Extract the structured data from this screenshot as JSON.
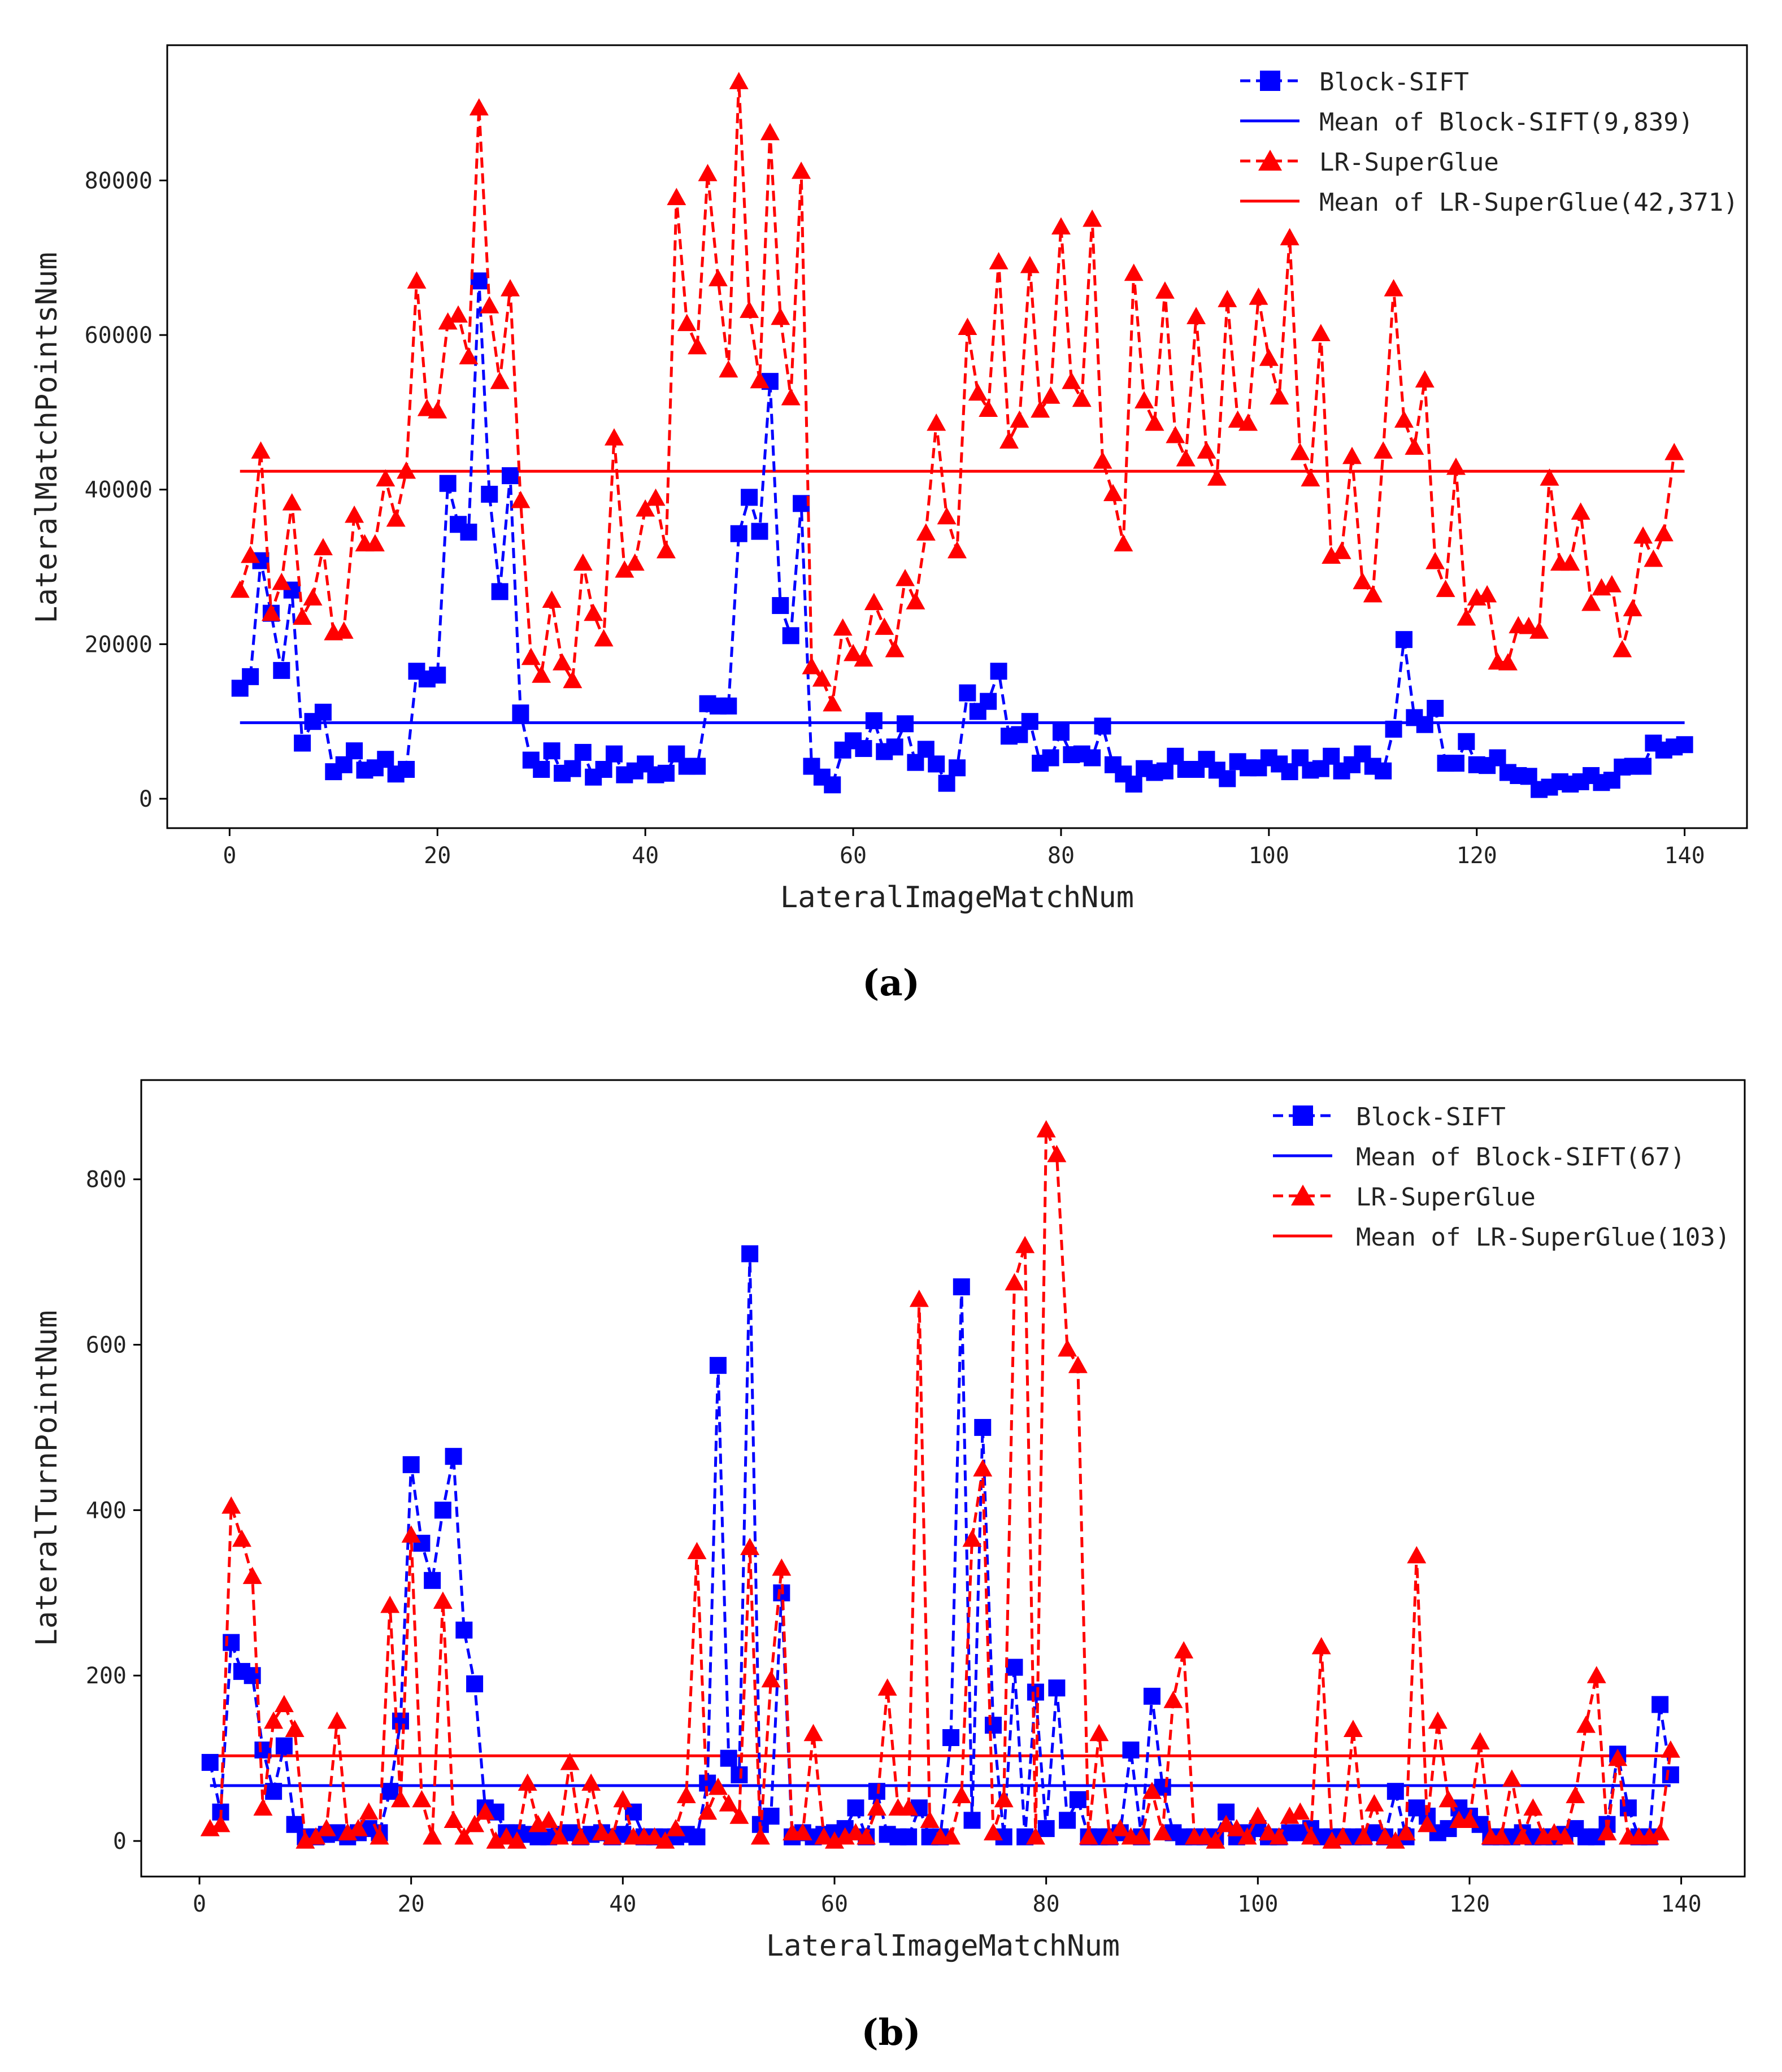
{
  "figure": {
    "caption_a": "(a)",
    "caption_b": "(b)"
  },
  "colors": {
    "block": "#0000ff",
    "lr": "#ff0000",
    "axis": "#000000",
    "text": "#222222"
  },
  "chart_data": [
    {
      "type": "line",
      "panel": "a",
      "title": "",
      "xlabel": "LateralImageMatchNum",
      "ylabel": "LateralMatchPointsNum",
      "xlim": [
        -6.0,
        146.0
      ],
      "ylim": [
        -3800,
        97500
      ],
      "xticks": [
        0,
        20,
        40,
        60,
        80,
        100,
        120,
        140
      ],
      "yticks": [
        0,
        20000,
        40000,
        60000,
        80000
      ],
      "grid": false,
      "legend_position": "top-right",
      "series": [
        {
          "name": "Block-SIFT",
          "style": "dashed",
          "marker": "square",
          "color": "#0000ff",
          "x_start": 1,
          "values": [
            14300,
            15800,
            30800,
            24000,
            16600,
            27000,
            7200,
            10000,
            11200,
            3500,
            4400,
            6200,
            3700,
            4000,
            5100,
            3200,
            3800,
            16500,
            15500,
            16000,
            40800,
            35500,
            34500,
            67000,
            39400,
            26800,
            41800,
            11100,
            5000,
            3800,
            6200,
            3300,
            3900,
            6000,
            2800,
            3800,
            5800,
            3100,
            3600,
            4500,
            3100,
            3300,
            5800,
            4200,
            4200,
            12300,
            12000,
            12000,
            34300,
            39000,
            34600,
            54000,
            25000,
            21100,
            38200,
            4200,
            2800,
            1800,
            6300,
            7500,
            6500,
            10100,
            6100,
            6700,
            9700,
            4700,
            6400,
            4500,
            2000,
            4000,
            13700,
            11300,
            12600,
            16500,
            8100,
            8300,
            10000,
            4600,
            5300,
            8600,
            5700,
            5800,
            5300,
            9400,
            4400,
            3200,
            1900,
            3900,
            3400,
            3600,
            5500,
            3800,
            3800,
            5100,
            3700,
            2600,
            4800,
            4000,
            4000,
            5300,
            4500,
            3500,
            5300,
            3700,
            3900,
            5500,
            3600,
            4400,
            5800,
            4200,
            3600,
            9000,
            20600,
            10500,
            9600,
            11700,
            4600,
            4600,
            7400,
            4400,
            4300,
            5300,
            3400,
            3000,
            2900,
            1200,
            1500,
            2200,
            1900,
            2200,
            3000,
            2100,
            2400,
            4100,
            4200,
            4200,
            7200,
            6300,
            6700,
            7000
          ]
        },
        {
          "name": "LR-SuperGlue",
          "style": "dashed",
          "marker": "triangle",
          "color": "#ff0000",
          "x_start": 1,
          "values": [
            27000,
            31500,
            45000,
            24000,
            28000,
            38300,
            23500,
            26000,
            32500,
            21500,
            21700,
            36700,
            33000,
            33000,
            41400,
            36200,
            42400,
            67000,
            50500,
            50200,
            61700,
            62600,
            57200,
            89400,
            63800,
            54000,
            66000,
            38600,
            18300,
            16000,
            25700,
            17600,
            15300,
            30500,
            24000,
            20700,
            46700,
            29600,
            30500,
            37500,
            38900,
            32100,
            77800,
            61500,
            58500,
            80900,
            67300,
            55500,
            92800,
            63200,
            54100,
            86200,
            62300,
            51900,
            81200,
            17100,
            15500,
            12300,
            22100,
            18800,
            18100,
            25400,
            22200,
            19300,
            28500,
            25500,
            34400,
            48600,
            36500,
            32100,
            61000,
            52500,
            50400,
            69500,
            46300,
            49000,
            69000,
            50300,
            52100,
            74000,
            54000,
            51700,
            75000,
            43700,
            39500,
            33000,
            68000,
            51500,
            48600,
            65700,
            47000,
            44000,
            62400,
            45000,
            41500,
            64600,
            49000,
            48600,
            64900,
            57000,
            52000,
            72600,
            44800,
            41400,
            60200,
            31400,
            32000,
            44300,
            28100,
            26400,
            45000,
            66000,
            49000,
            45500,
            54200,
            30700,
            27100,
            42900,
            23400,
            26000,
            26400,
            17700,
            17600,
            22400,
            22300,
            21700,
            41500,
            30500,
            30500,
            37100,
            25300,
            27300,
            27700,
            19300,
            24600,
            34000,
            31000,
            34300,
            44800
          ]
        }
      ],
      "reference_lines": [
        {
          "name": "Mean of Block-SIFT(9,839)",
          "value": 9839,
          "color": "#0000ff"
        },
        {
          "name": "Mean of LR-SuperGlue(42,371)",
          "value": 42371,
          "color": "#ff0000"
        }
      ]
    },
    {
      "type": "line",
      "panel": "b",
      "title": "",
      "xlabel": "LateralImageMatchNum",
      "ylabel": "LateralTurnPointNum",
      "xlim": [
        -5.5,
        146.0
      ],
      "ylim": [
        -43,
        920
      ],
      "xticks": [
        0,
        20,
        40,
        60,
        80,
        100,
        120,
        140
      ],
      "yticks": [
        0,
        200,
        400,
        600,
        800
      ],
      "grid": false,
      "legend_position": "top-right",
      "series": [
        {
          "name": "Block-SIFT",
          "style": "dashed",
          "marker": "square",
          "color": "#0000ff",
          "x_start": 1,
          "values": [
            95,
            35,
            240,
            205,
            200,
            110,
            60,
            115,
            20,
            5,
            5,
            8,
            10,
            5,
            10,
            15,
            10,
            60,
            145,
            455,
            360,
            315,
            400,
            465,
            255,
            190,
            40,
            35,
            10,
            10,
            8,
            5,
            5,
            8,
            10,
            5,
            8,
            10,
            5,
            8,
            35,
            5,
            5,
            5,
            5,
            8,
            5,
            70,
            575,
            100,
            80,
            710,
            20,
            30,
            300,
            5,
            10,
            5,
            8,
            10,
            15,
            40,
            5,
            60,
            8,
            5,
            5,
            40,
            5,
            5,
            125,
            670,
            25,
            500,
            140,
            5,
            210,
            5,
            180,
            15,
            185,
            25,
            50,
            5,
            5,
            5,
            10,
            110,
            5,
            175,
            65,
            10,
            5,
            5,
            5,
            5,
            35,
            5,
            10,
            15,
            5,
            5,
            10,
            10,
            15,
            5,
            5,
            5,
            5,
            5,
            10,
            5,
            60,
            5,
            40,
            30,
            10,
            15,
            40,
            30,
            20,
            5,
            5,
            5,
            10,
            5,
            5,
            5,
            8,
            15,
            5,
            5,
            20,
            105,
            40,
            5,
            5,
            165,
            80
          ]
        },
        {
          "name": "LR-SuperGlue",
          "style": "dashed",
          "marker": "triangle",
          "color": "#ff0000",
          "x_start": 1,
          "values": [
            15,
            20,
            405,
            365,
            320,
            40,
            145,
            165,
            135,
            0,
            5,
            15,
            145,
            10,
            15,
            35,
            5,
            285,
            50,
            370,
            50,
            5,
            290,
            25,
            5,
            20,
            35,
            0,
            5,
            0,
            70,
            20,
            25,
            5,
            95,
            5,
            70,
            10,
            5,
            50,
            5,
            5,
            5,
            0,
            15,
            55,
            350,
            35,
            65,
            45,
            30,
            355,
            5,
            195,
            330,
            10,
            10,
            130,
            5,
            0,
            5,
            10,
            5,
            40,
            185,
            40,
            40,
            655,
            25,
            5,
            5,
            55,
            365,
            450,
            10,
            50,
            675,
            720,
            5,
            860,
            830,
            595,
            575,
            5,
            130,
            5,
            15,
            5,
            5,
            60,
            10,
            170,
            230,
            5,
            5,
            0,
            20,
            15,
            5,
            30,
            10,
            5,
            30,
            35,
            5,
            235,
            0,
            5,
            135,
            5,
            45,
            5,
            0,
            10,
            345,
            20,
            145,
            50,
            25,
            25,
            120,
            5,
            5,
            75,
            5,
            40,
            5,
            10,
            5,
            55,
            140,
            200,
            10,
            100,
            5,
            5,
            5,
            10,
            110
          ]
        }
      ],
      "reference_lines": [
        {
          "name": "Mean of Block-SIFT(67)",
          "value": 67,
          "color": "#0000ff"
        },
        {
          "name": "Mean of LR-SuperGlue(103)",
          "value": 103,
          "color": "#ff0000"
        }
      ]
    }
  ]
}
